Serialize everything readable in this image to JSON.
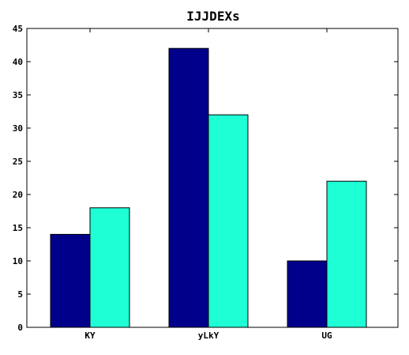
{
  "chart_data": {
    "type": "bar",
    "title": "IJJDEXs",
    "xlabel": "",
    "ylabel": "",
    "categories": [
      "KY",
      "yLkY",
      "UG"
    ],
    "series": [
      {
        "values": [
          14,
          42,
          10
        ],
        "color": "#00008b"
      },
      {
        "values": [
          18,
          32,
          22
        ],
        "color": "#1effd5"
      }
    ],
    "ylim": [
      0,
      45
    ],
    "yticks": [
      0,
      5,
      10,
      15,
      20,
      25,
      30,
      35,
      40,
      45
    ],
    "grid": false,
    "legend": "none"
  }
}
